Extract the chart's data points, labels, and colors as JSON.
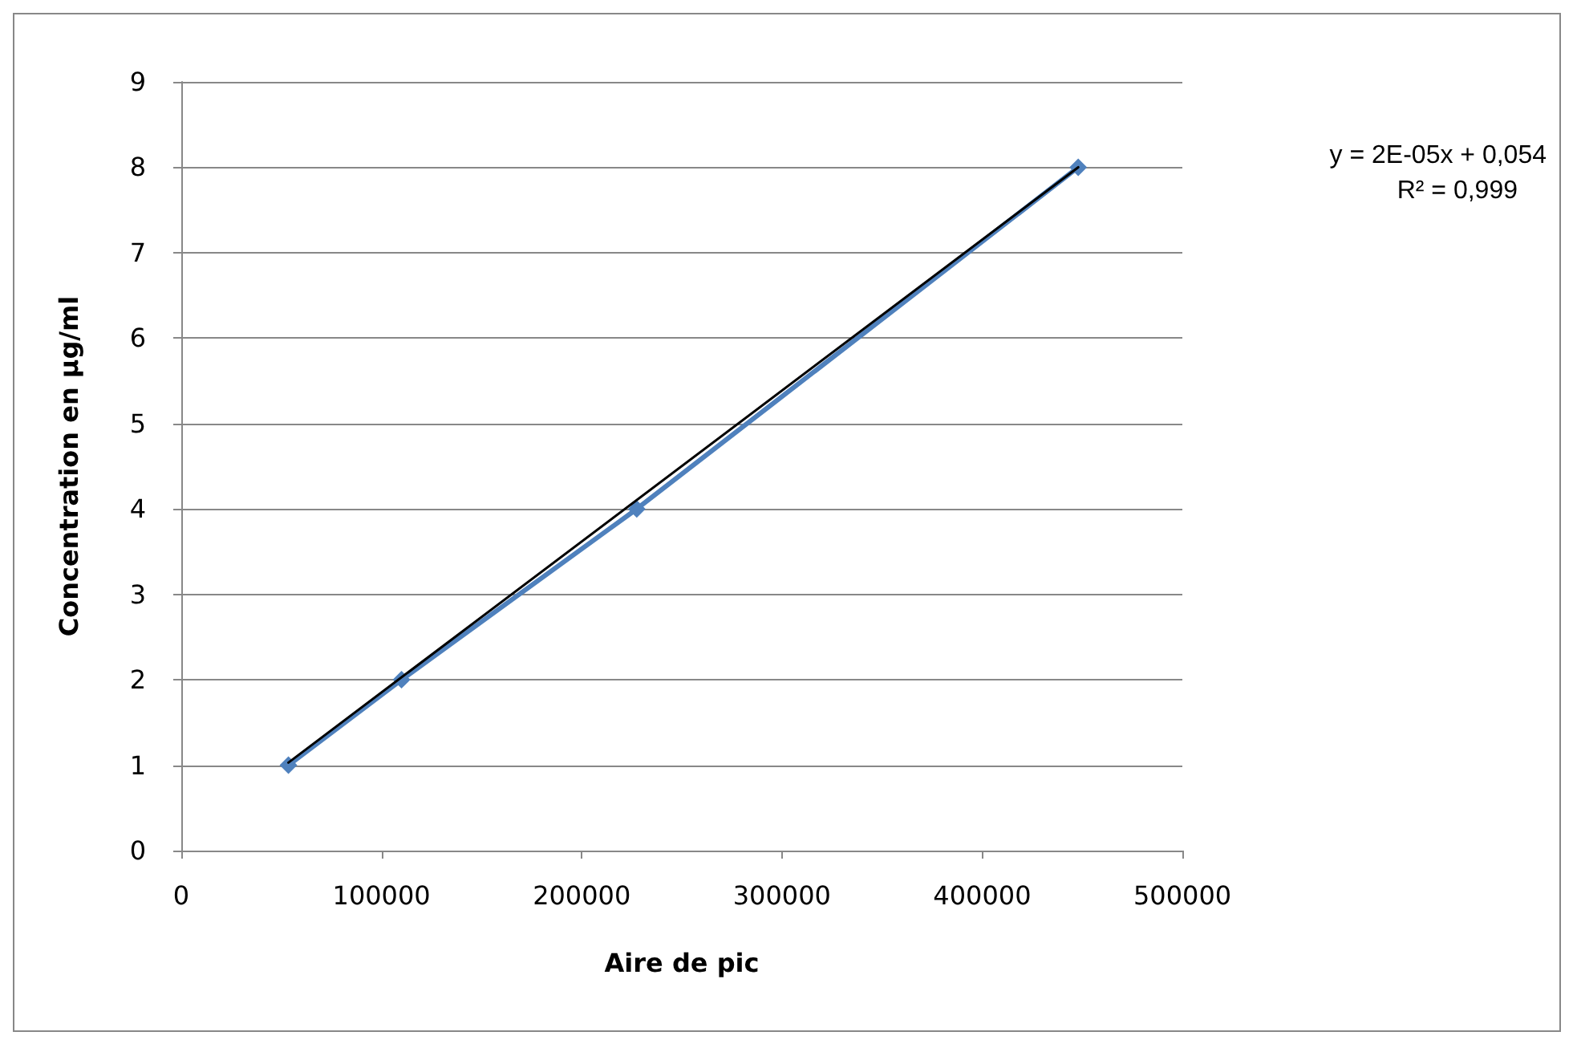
{
  "chart_data": {
    "type": "line",
    "xlabel": "Aire de pic",
    "ylabel": "Concentration en µg/ml",
    "x": [
      53500,
      110000,
      227500,
      448000
    ],
    "series": [
      {
        "color": "#4f81bd",
        "values": [
          1,
          2,
          4,
          8
        ],
        "marker": "diamond"
      },
      {
        "color": "#000000",
        "x": [
          53500,
          448000
        ],
        "values": [
          1.03,
          8.0
        ],
        "marker": "none"
      }
    ],
    "xlim": [
      0,
      500000
    ],
    "xticks": [
      0,
      100000,
      200000,
      300000,
      400000,
      500000
    ],
    "ylim": [
      0,
      9
    ],
    "yticks": [
      0,
      1,
      2,
      3,
      4,
      5,
      6,
      7,
      8,
      9
    ],
    "grid": "y",
    "annotations": [
      "y = 2E-05x + 0,054",
      "R² = 0,999"
    ]
  }
}
